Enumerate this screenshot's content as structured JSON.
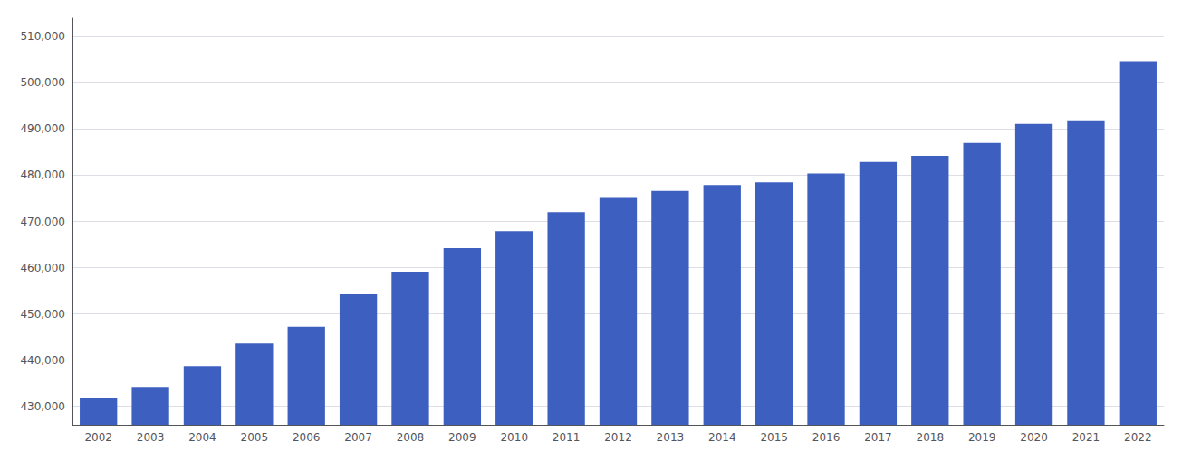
{
  "chart_data": {
    "type": "bar",
    "categories": [
      "2002",
      "2003",
      "2004",
      "2005",
      "2006",
      "2007",
      "2008",
      "2009",
      "2010",
      "2011",
      "2012",
      "2013",
      "2014",
      "2015",
      "2016",
      "2017",
      "2018",
      "2019",
      "2020",
      "2021",
      "2022"
    ],
    "values": [
      431900,
      434200,
      438700,
      443600,
      447200,
      454200,
      459100,
      464200,
      467900,
      472000,
      475100,
      476600,
      477900,
      478500,
      480400,
      482900,
      484200,
      487000,
      491100,
      491700,
      504700
    ],
    "color": "#3d5fc0",
    "ylim": [
      426000,
      514000
    ],
    "yticks": [
      {
        "value": 430000,
        "label": "430,000"
      },
      {
        "value": 440000,
        "label": "440,000"
      },
      {
        "value": 450000,
        "label": "450,000"
      },
      {
        "value": 460000,
        "label": "460,000"
      },
      {
        "value": 470000,
        "label": "470,000"
      },
      {
        "value": 480000,
        "label": "480,000"
      },
      {
        "value": 490000,
        "label": "490,000"
      },
      {
        "value": 500000,
        "label": "500,000"
      },
      {
        "value": 510000,
        "label": "510,000"
      }
    ],
    "grid": true
  }
}
